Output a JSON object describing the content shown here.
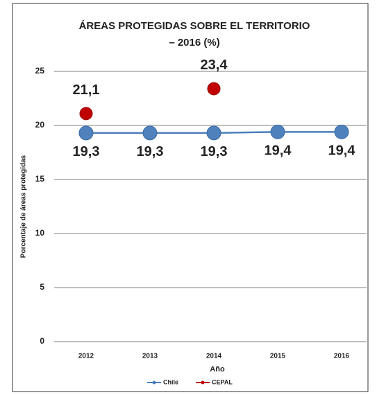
{
  "chart_data": {
    "type": "line",
    "title": [
      "ÁREAS PROTEGIDAS SOBRE EL TERRITORIO",
      "– 2016 (%)"
    ],
    "x_label": "Año",
    "y_label": "Porcentaje de áreas protegidas",
    "categories": [
      "2012",
      "2013",
      "2014",
      "2015",
      "2016"
    ],
    "series": [
      {
        "name": "Chile",
        "color": "#4a7ebb",
        "values": [
          19.3,
          19.3,
          19.3,
          19.4,
          19.4
        ],
        "value_labels": [
          "19,3",
          "19,3",
          "19,3",
          "19,4",
          "19,4"
        ]
      },
      {
        "name": "CEPAL",
        "color": "#c00000",
        "values": [
          21.1,
          null,
          23.4,
          null,
          null
        ],
        "value_labels": [
          "21,1",
          null,
          "23,4",
          null,
          null
        ]
      }
    ],
    "ylim": [
      0,
      25
    ],
    "yticks": [
      0,
      5,
      10,
      15,
      20,
      25
    ],
    "grid": true,
    "legend": "bottom"
  }
}
